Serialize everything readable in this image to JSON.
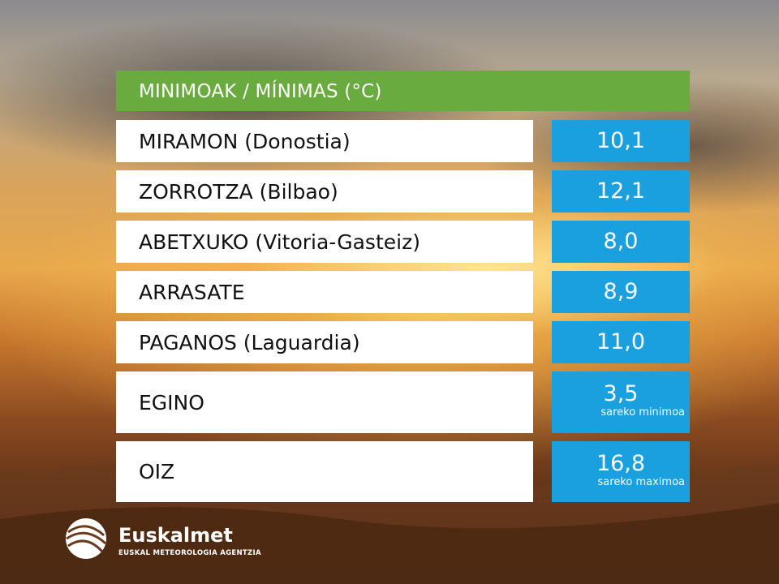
{
  "header": {
    "title": "MINIMOAK / MÍNIMAS (°C)"
  },
  "table": {
    "rows": [
      {
        "station": "MIRAMON (Donostia)",
        "value": "10,1"
      },
      {
        "station": "ZORROTZA (Bilbao)",
        "value": "12,1"
      },
      {
        "station": "ABETXUKO (Vitoria-Gasteiz)",
        "value": "8,0"
      },
      {
        "station": "ARRASATE",
        "value": "8,9"
      },
      {
        "station": "PAGANOS (Laguardia)",
        "value": "11,0"
      },
      {
        "station": "EGINO",
        "value": "3,5",
        "note": "sareko minimoa"
      },
      {
        "station": "OIZ",
        "value": "16,8",
        "note": "sareko maximoa"
      }
    ]
  },
  "logo": {
    "name": "Euskalmet",
    "subtitle": "EUSKAL METEOROLOGIA AGENTZIA"
  }
}
